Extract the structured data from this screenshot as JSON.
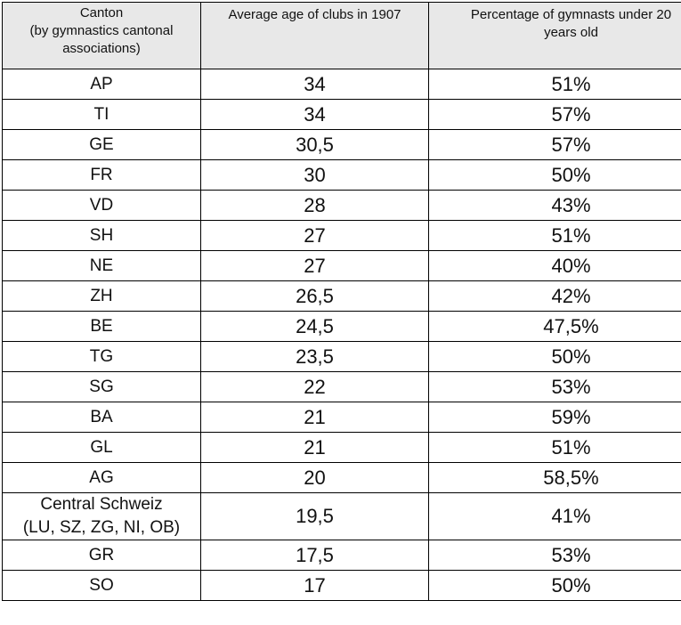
{
  "table": {
    "headers": {
      "canton_line1": "Canton",
      "canton_line2": "(by gymnastics cantonal",
      "canton_line3": "associations)",
      "age": "Average age of clubs in 1907",
      "pct_line1": "Percentage of gymnasts under 20",
      "pct_line2": "years old"
    },
    "rows": [
      {
        "canton": "AP",
        "age": "34",
        "pct": "51%"
      },
      {
        "canton": "TI",
        "age": "34",
        "pct": "57%"
      },
      {
        "canton": "GE",
        "age": "30,5",
        "pct": "57%"
      },
      {
        "canton": "FR",
        "age": "30",
        "pct": "50%"
      },
      {
        "canton": "VD",
        "age": "28",
        "pct": "43%"
      },
      {
        "canton": "SH",
        "age": "27",
        "pct": "51%"
      },
      {
        "canton": "NE",
        "age": "27",
        "pct": "40%"
      },
      {
        "canton": "ZH",
        "age": "26,5",
        "pct": "42%"
      },
      {
        "canton": "BE",
        "age": "24,5",
        "pct": "47,5%"
      },
      {
        "canton": "TG",
        "age": "23,5",
        "pct": "50%"
      },
      {
        "canton": "SG",
        "age": "22",
        "pct": "53%"
      },
      {
        "canton": "BA",
        "age": "21",
        "pct": "59%"
      },
      {
        "canton": "GL",
        "age": "21",
        "pct": "51%"
      },
      {
        "canton": "AG",
        "age": "20",
        "pct": "58,5%"
      },
      {
        "canton_line1": "Central Schweiz",
        "canton_line2": "(LU, SZ, ZG, NI, OB)",
        "age": "19,5",
        "pct": "41%"
      },
      {
        "canton": "GR",
        "age": "17,5",
        "pct": "53%"
      },
      {
        "canton": "SO",
        "age": "17",
        "pct": "50%"
      }
    ]
  }
}
